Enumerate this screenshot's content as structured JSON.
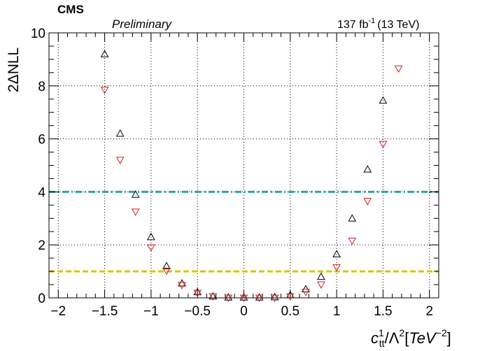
{
  "chart_data": {
    "type": "scatter",
    "experiment": "CMS",
    "status": "Preliminary",
    "lumi_value": "137 fb",
    "lumi_exponent": "-1",
    "lumi_energy": "(13 TeV)",
    "xlabel_c": "c",
    "xlabel_sub": "tt",
    "xlabel_sup": "1",
    "xlabel_rest_a": "/Λ",
    "xlabel_sq": "2",
    "xlabel_bracket_open": "[",
    "xlabel_units": "TeV",
    "xlabel_units_exp": "−2",
    "xlabel_bracket_close": "]",
    "ylabel": "2ΔNLL",
    "xlim": [
      -2.1,
      2.1
    ],
    "ylim": [
      0,
      10
    ],
    "x_ticks": [
      -2,
      -1.5,
      -1,
      -0.5,
      0,
      0.5,
      1,
      1.5,
      2
    ],
    "x_tick_labels": [
      "−2",
      "−1.5",
      "−1",
      "−0.5",
      "0",
      "0.5",
      "1",
      "1.5",
      "2"
    ],
    "y_ticks": [
      0,
      2,
      4,
      6,
      8,
      10
    ],
    "y_tick_labels": [
      "0",
      "2",
      "4",
      "6",
      "8",
      "10"
    ],
    "grid": true,
    "reference_lines": [
      {
        "y": 4,
        "color": "#2aa4a4",
        "style": "dash-dot"
      },
      {
        "y": 1,
        "color": "#cccc00",
        "style": "dashed"
      }
    ],
    "series": [
      {
        "marker": "triangle-up",
        "color": "#000000",
        "x": [
          -1.5,
          -1.333,
          -1.167,
          -1.0,
          -0.833,
          -0.667,
          -0.5,
          -0.333,
          -0.167,
          0.0,
          0.167,
          0.333,
          0.5,
          0.667,
          0.833,
          1.0,
          1.167,
          1.333,
          1.5
        ],
        "y": [
          9.2,
          6.2,
          3.9,
          2.3,
          1.2,
          0.55,
          0.22,
          0.06,
          0.02,
          0.02,
          0.02,
          0.03,
          0.11,
          0.33,
          0.8,
          1.65,
          3.0,
          4.85,
          7.45
        ]
      },
      {
        "marker": "triangle-down",
        "color": "#d42020",
        "x": [
          -1.5,
          -1.333,
          -1.167,
          -1.0,
          -0.833,
          -0.667,
          -0.5,
          -0.333,
          -0.167,
          0.0,
          0.167,
          0.333,
          0.5,
          0.667,
          0.833,
          1.0,
          1.167,
          1.333,
          1.5,
          1.667
        ],
        "y": [
          7.85,
          5.2,
          3.25,
          1.9,
          1.02,
          0.48,
          0.18,
          0.05,
          0.0,
          0.0,
          0.0,
          0.0,
          0.05,
          0.22,
          0.5,
          1.15,
          2.15,
          3.65,
          5.8,
          8.65
        ]
      }
    ]
  }
}
